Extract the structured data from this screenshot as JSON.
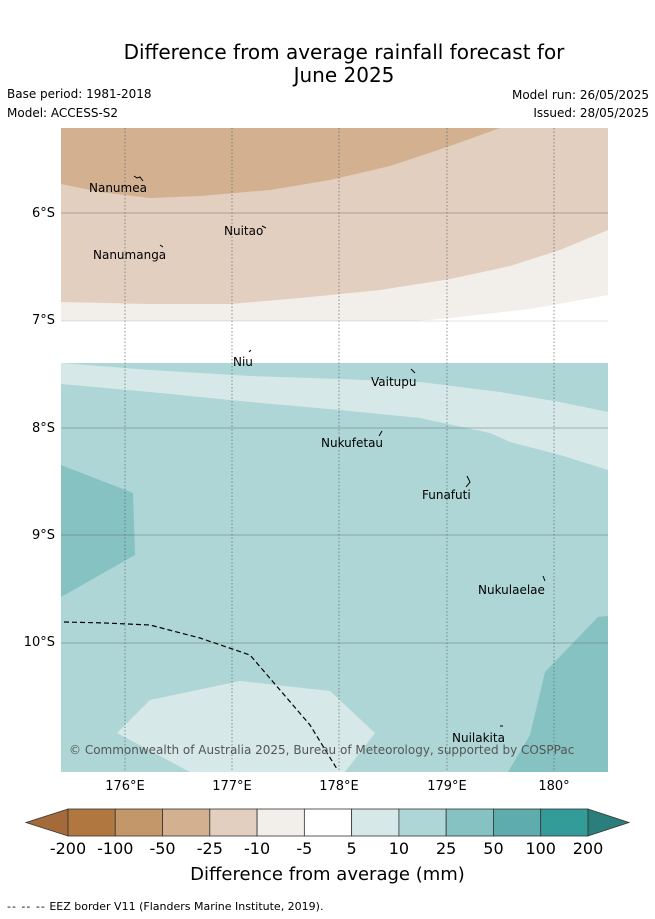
{
  "header": {
    "title_line1": "Difference from average rainfall forecast for",
    "title_line2": "June 2025",
    "base_period": "Base period: 1981-2018",
    "model": "Model: ACCESS-S2",
    "model_run": "Model run: 26/05/2025",
    "issued": "Issued: 28/05/2025"
  },
  "map": {
    "latitude_labels": [
      "6°S",
      "7°S",
      "8°S",
      "9°S",
      "10°S"
    ],
    "longitude_labels": [
      "176°E",
      "177°E",
      "178°E",
      "179°E",
      "180°"
    ],
    "islands": [
      {
        "name": "Nanumea"
      },
      {
        "name": "Nuitao"
      },
      {
        "name": "Nanumanga"
      },
      {
        "name": "Niu"
      },
      {
        "name": "Vaitupu"
      },
      {
        "name": "Nukufetau"
      },
      {
        "name": "Funafuti"
      },
      {
        "name": "Nukulaelae"
      },
      {
        "name": "Nuilakita"
      }
    ],
    "copyright": "© Commonwealth of Australia 2025, Bureau of Meteorology, supported by COSPPac",
    "colors": {
      "minus200": "#a56a3a",
      "minus100": "#b07840",
      "minus50": "#c4976a",
      "minus25": "#d2b090",
      "minus10": "#e3cfbf",
      "minus5": "#f2eee9",
      "zero": "#ffffff",
      "plus5": "#d6e9e8",
      "plus10": "#aed6d6",
      "plus25": "#86c2c1",
      "plus50": "#5eacab",
      "plus100": "#349c98",
      "plus200": "#2a7e7c"
    }
  },
  "colorbar": {
    "ticks": [
      "-200",
      "-100",
      "-50",
      "-25",
      "-10",
      "-5",
      "5",
      "10",
      "25",
      "50",
      "100",
      "200"
    ],
    "title": "Difference from average (mm)"
  },
  "footnote": {
    "marker": "--  --  --",
    "text": "EEZ border V11 (Flanders Marine Institute, 2019)."
  }
}
